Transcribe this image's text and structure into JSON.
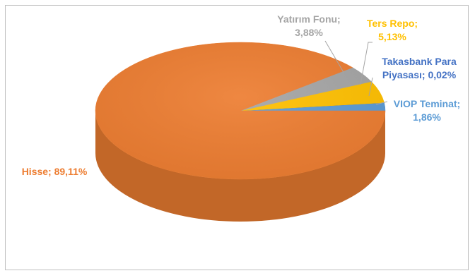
{
  "chart_data": {
    "type": "pie",
    "style": "3d-exploded-tilted",
    "title": "",
    "series": [
      {
        "labels": [
          "VIOP Teminat",
          "Takasbank Para Piyasası",
          "Ters Repo",
          "Yatırım Fonu",
          "Hisse"
        ],
        "values": [
          1.86,
          0.02,
          5.13,
          3.88,
          89.11
        ],
        "colors": [
          "#5B9BD5",
          "#4472C4",
          "#FFC000",
          "#A5A5A5",
          "#ED7D31"
        ]
      }
    ],
    "data_labels": [
      {
        "line1": "VIOP Teminat;",
        "line2": "1,86%",
        "color": "#5B9BD5"
      },
      {
        "line1": "Takasbank Para",
        "line2": "Piyasası; 0,02%",
        "color": "#4472C4"
      },
      {
        "line1": "Ters Repo;",
        "line2": "5,13%",
        "color": "#FFC000"
      },
      {
        "line1": "Yatırım Fonu;",
        "line2": "3,88%",
        "color": "#A5A5A5"
      },
      {
        "line1": "Hisse; 89,11%",
        "line2": "",
        "color": "#ED7D31"
      }
    ]
  }
}
